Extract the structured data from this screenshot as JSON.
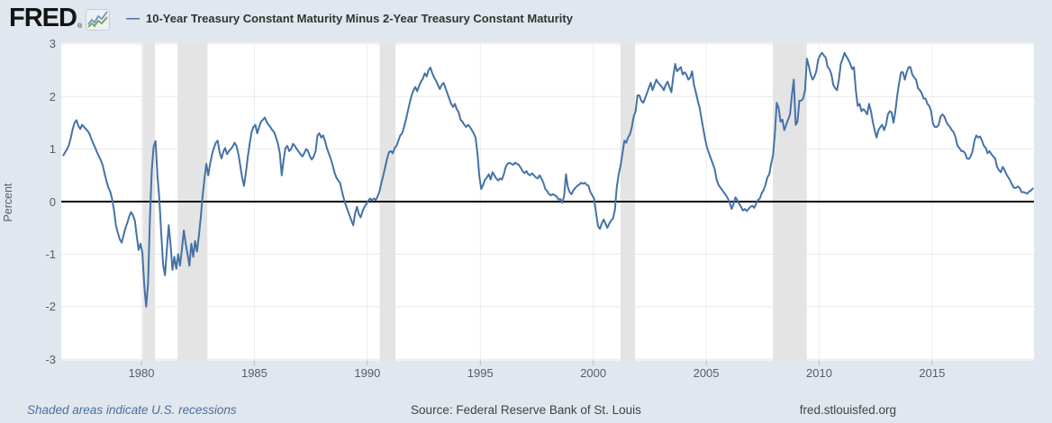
{
  "header": {
    "logo_text": "FRED",
    "registered": "®",
    "legend_swatch": "—"
  },
  "chart_data": {
    "type": "line",
    "title": "10-Year Treasury Constant Maturity Minus 2-Year Treasury Constant Maturity",
    "ylabel": "Percent",
    "line_color": "#4572a7",
    "zero_line_color": "#000000",
    "recession_band_color": "#e4e4e4",
    "frequency": "monthly",
    "start_month": "1976-07",
    "end_month": "2019-06",
    "ylim": [
      -3,
      3
    ],
    "xlim": [
      1976.45,
      2019.51
    ],
    "yticks": [
      3,
      2,
      1,
      0,
      -1,
      -2,
      -3
    ],
    "xticks": [
      1980,
      1985,
      1990,
      1995,
      2000,
      2005,
      2010,
      2015
    ],
    "grid": true,
    "legend_position": "top",
    "recessions": [
      [
        1980.05,
        1980.6
      ],
      [
        1981.6,
        1982.92
      ],
      [
        1990.55,
        1991.25
      ],
      [
        2001.2,
        2001.85
      ],
      [
        2007.95,
        2009.45
      ]
    ],
    "values": [
      0.88,
      0.94,
      1.0,
      1.08,
      1.22,
      1.38,
      1.5,
      1.55,
      1.44,
      1.38,
      1.46,
      1.42,
      1.38,
      1.34,
      1.28,
      1.18,
      1.1,
      1.02,
      0.93,
      0.86,
      0.78,
      0.68,
      0.52,
      0.38,
      0.26,
      0.18,
      0.04,
      -0.18,
      -0.46,
      -0.6,
      -0.72,
      -0.78,
      -0.64,
      -0.5,
      -0.4,
      -0.28,
      -0.2,
      -0.26,
      -0.36,
      -0.65,
      -0.92,
      -0.8,
      -0.98,
      -1.6,
      -2.0,
      -1.55,
      -0.35,
      0.6,
      1.05,
      1.15,
      0.5,
      0.05,
      -0.6,
      -1.2,
      -1.4,
      -0.9,
      -0.45,
      -0.82,
      -1.3,
      -1.05,
      -1.28,
      -1.0,
      -1.22,
      -0.9,
      -0.55,
      -0.8,
      -1.0,
      -1.22,
      -0.8,
      -1.05,
      -0.75,
      -0.95,
      -0.65,
      -0.3,
      0.12,
      0.45,
      0.72,
      0.5,
      0.72,
      0.9,
      1.02,
      1.12,
      1.16,
      0.94,
      0.82,
      0.95,
      1.02,
      0.9,
      0.96,
      1.0,
      1.05,
      1.12,
      1.06,
      0.9,
      0.68,
      0.45,
      0.3,
      0.55,
      0.85,
      1.1,
      1.32,
      1.42,
      1.46,
      1.3,
      1.42,
      1.52,
      1.56,
      1.6,
      1.52,
      1.46,
      1.42,
      1.36,
      1.32,
      1.22,
      1.1,
      0.92,
      0.5,
      0.78,
      1.02,
      1.06,
      0.96,
      1.0,
      1.1,
      1.06,
      1.0,
      0.95,
      0.9,
      0.86,
      0.92,
      1.0,
      0.96,
      0.86,
      0.8,
      0.86,
      0.96,
      1.26,
      1.3,
      1.22,
      1.26,
      1.16,
      1.02,
      0.92,
      0.82,
      0.7,
      0.56,
      0.46,
      0.4,
      0.36,
      0.2,
      0.06,
      -0.06,
      -0.16,
      -0.26,
      -0.36,
      -0.45,
      -0.22,
      -0.1,
      -0.24,
      -0.3,
      -0.18,
      -0.1,
      -0.05,
      0.02,
      0.06,
      0.02,
      0.06,
      0.03,
      0.1,
      0.2,
      0.36,
      0.5,
      0.66,
      0.82,
      0.94,
      0.96,
      0.92,
      1.02,
      1.06,
      1.16,
      1.26,
      1.3,
      1.42,
      1.56,
      1.72,
      1.88,
      2.02,
      2.12,
      2.18,
      2.1,
      2.2,
      2.28,
      2.34,
      2.44,
      2.38,
      2.5,
      2.55,
      2.44,
      2.36,
      2.3,
      2.22,
      2.14,
      2.22,
      2.26,
      2.16,
      2.06,
      1.96,
      1.86,
      1.8,
      1.86,
      1.76,
      1.7,
      1.56,
      1.52,
      1.46,
      1.42,
      1.46,
      1.42,
      1.36,
      1.3,
      1.22,
      0.92,
      0.48,
      0.24,
      0.32,
      0.42,
      0.46,
      0.52,
      0.42,
      0.56,
      0.5,
      0.44,
      0.4,
      0.44,
      0.42,
      0.52,
      0.66,
      0.72,
      0.74,
      0.72,
      0.7,
      0.74,
      0.72,
      0.7,
      0.64,
      0.58,
      0.54,
      0.58,
      0.52,
      0.5,
      0.54,
      0.5,
      0.46,
      0.44,
      0.5,
      0.44,
      0.36,
      0.24,
      0.2,
      0.14,
      0.12,
      0.14,
      0.12,
      0.1,
      0.04,
      0.05,
      -0.02,
      0.1,
      0.52,
      0.28,
      0.18,
      0.14,
      0.22,
      0.26,
      0.3,
      0.32,
      0.36,
      0.34,
      0.36,
      0.32,
      0.3,
      0.18,
      0.12,
      0.05,
      -0.22,
      -0.46,
      -0.52,
      -0.42,
      -0.34,
      -0.42,
      -0.5,
      -0.42,
      -0.36,
      -0.32,
      -0.16,
      0.28,
      0.52,
      0.68,
      0.92,
      1.16,
      1.12,
      1.22,
      1.28,
      1.42,
      1.62,
      1.72,
      2.02,
      2.02,
      1.92,
      1.88,
      1.96,
      2.06,
      2.16,
      2.26,
      2.12,
      2.22,
      2.32,
      2.26,
      2.22,
      2.18,
      2.12,
      2.22,
      2.28,
      2.18,
      2.08,
      2.38,
      2.62,
      2.48,
      2.52,
      2.56,
      2.42,
      2.46,
      2.42,
      2.32,
      2.36,
      2.48,
      2.22,
      2.08,
      1.92,
      1.78,
      1.58,
      1.38,
      1.18,
      1.02,
      0.92,
      0.82,
      0.72,
      0.62,
      0.42,
      0.32,
      0.27,
      0.22,
      0.17,
      0.12,
      0.06,
      -0.02,
      -0.14,
      -0.05,
      0.08,
      0.03,
      -0.04,
      -0.1,
      -0.17,
      -0.14,
      -0.18,
      -0.14,
      -0.1,
      -0.08,
      -0.12,
      -0.04,
      0.03,
      0.06,
      0.16,
      0.22,
      0.32,
      0.46,
      0.52,
      0.72,
      0.88,
      1.32,
      1.88,
      1.78,
      1.52,
      1.56,
      1.36,
      1.46,
      1.56,
      1.66,
      2.02,
      2.32,
      1.46,
      1.52,
      1.92,
      1.92,
      1.96,
      2.12,
      2.72,
      2.58,
      2.42,
      2.32,
      2.38,
      2.48,
      2.7,
      2.78,
      2.83,
      2.78,
      2.74,
      2.56,
      2.52,
      2.42,
      2.22,
      2.16,
      2.12,
      2.32,
      2.62,
      2.72,
      2.83,
      2.76,
      2.7,
      2.62,
      2.52,
      2.56,
      2.12,
      1.82,
      1.86,
      1.72,
      1.76,
      1.72,
      1.66,
      1.86,
      1.72,
      1.52,
      1.36,
      1.22,
      1.36,
      1.42,
      1.46,
      1.36,
      1.46,
      1.66,
      1.72,
      1.7,
      1.5,
      1.72,
      2.02,
      2.26,
      2.46,
      2.46,
      2.32,
      2.46,
      2.56,
      2.56,
      2.42,
      2.36,
      2.32,
      2.16,
      2.12,
      2.06,
      1.96,
      1.96,
      1.86,
      1.82,
      1.72,
      1.48,
      1.42,
      1.42,
      1.46,
      1.62,
      1.66,
      1.62,
      1.52,
      1.46,
      1.42,
      1.36,
      1.32,
      1.22,
      1.06,
      1.02,
      0.96,
      0.96,
      0.92,
      0.82,
      0.81,
      0.86,
      0.96,
      1.16,
      1.26,
      1.22,
      1.24,
      1.16,
      1.06,
      1.02,
      0.92,
      0.96,
      0.9,
      0.86,
      0.82,
      0.66,
      0.6,
      0.56,
      0.66,
      0.6,
      0.52,
      0.46,
      0.4,
      0.32,
      0.26,
      0.26,
      0.29,
      0.26,
      0.18,
      0.18,
      0.17,
      0.15,
      0.19,
      0.21,
      0.25
    ]
  },
  "footer": {
    "recessions_note": "Shaded areas indicate U.S. recessions",
    "source": "Source: Federal Reserve Bank of St. Louis",
    "site": "fred.stlouisfed.org"
  }
}
